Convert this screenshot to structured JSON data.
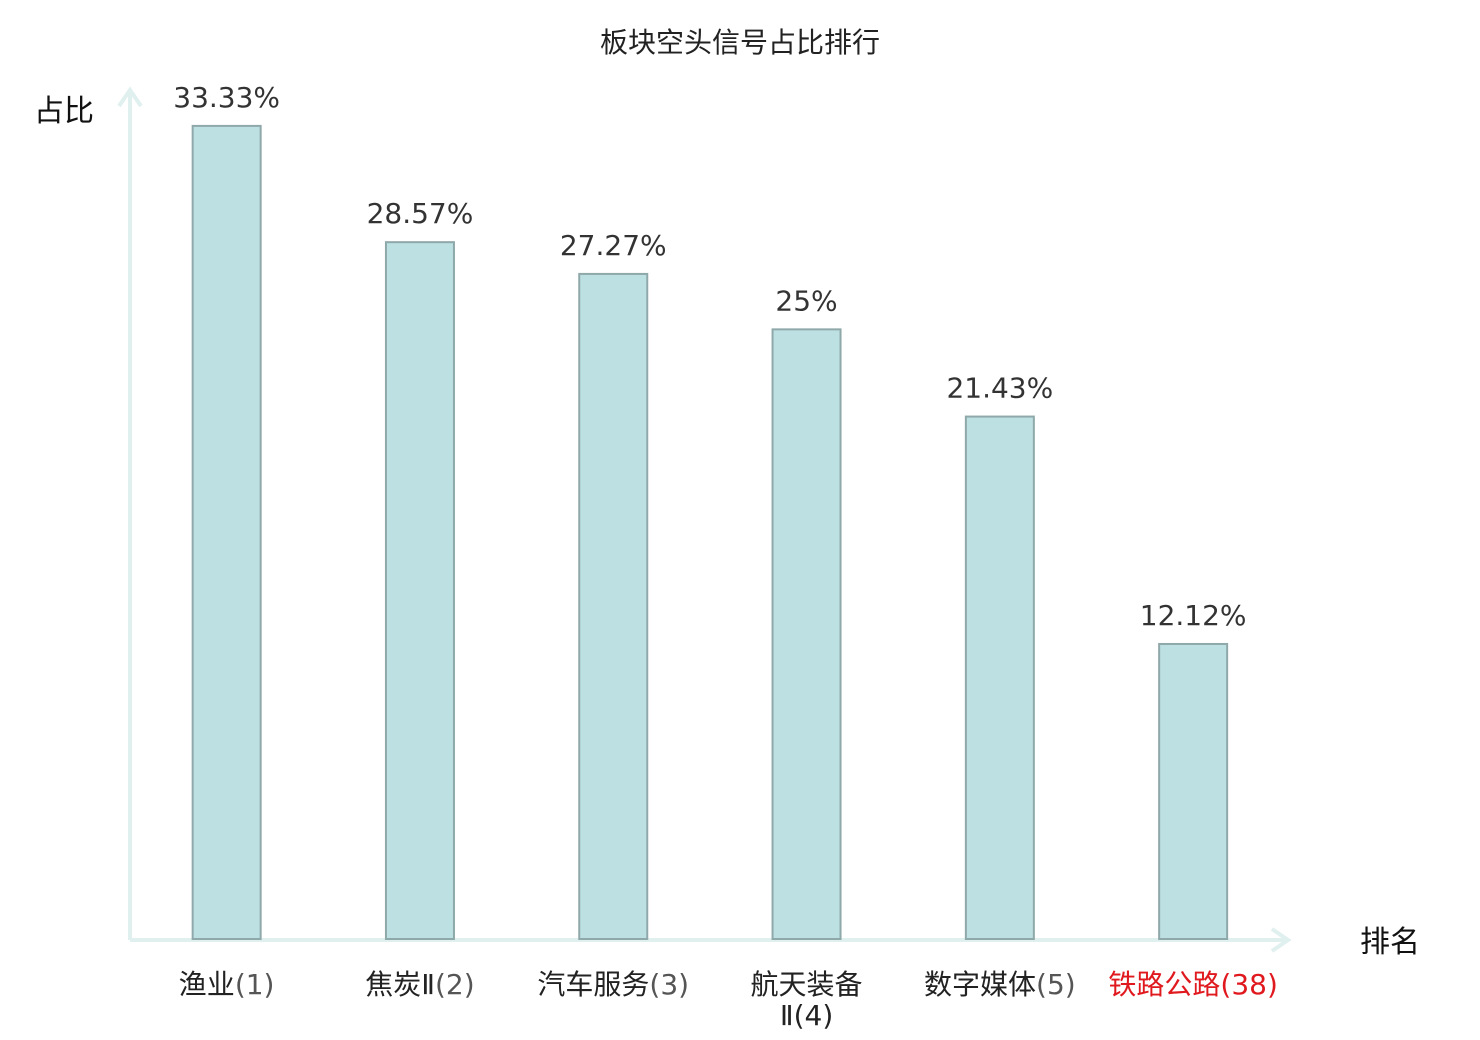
{
  "chart_data": {
    "type": "bar",
    "title": "板块空头信号占比排行",
    "ylabel": "占比",
    "xlabel": "排名",
    "ylim": [
      0,
      34.8
    ],
    "categories": [
      {
        "name": "渔业",
        "rank": "(1)",
        "line2": "",
        "highlight": false
      },
      {
        "name": "焦炭Ⅱ",
        "rank": "(2)",
        "line2": "",
        "highlight": false
      },
      {
        "name": "汽车服务",
        "rank": "(3)",
        "line2": "",
        "highlight": false
      },
      {
        "name": "航天装备",
        "rank": "",
        "line2": "Ⅱ(4)",
        "highlight": false
      },
      {
        "name": "数字媒体",
        "rank": "(5)",
        "line2": "",
        "highlight": false
      },
      {
        "name": "铁路公路",
        "rank": "(38)",
        "line2": "",
        "highlight": true
      }
    ],
    "values": [
      33.33,
      28.57,
      27.27,
      25,
      21.43,
      12.12
    ],
    "value_labels": [
      "33.33%",
      "28.57%",
      "27.27%",
      "25%",
      "21.43%",
      "12.12%"
    ],
    "grid": false
  },
  "colors": {
    "bar_fill": "#bde0e2",
    "bar_stroke": "#8fa8aa",
    "axis": "#dff0ee",
    "highlight": "#e0191e",
    "rank_text": "#555555",
    "label_text": "#222222"
  }
}
